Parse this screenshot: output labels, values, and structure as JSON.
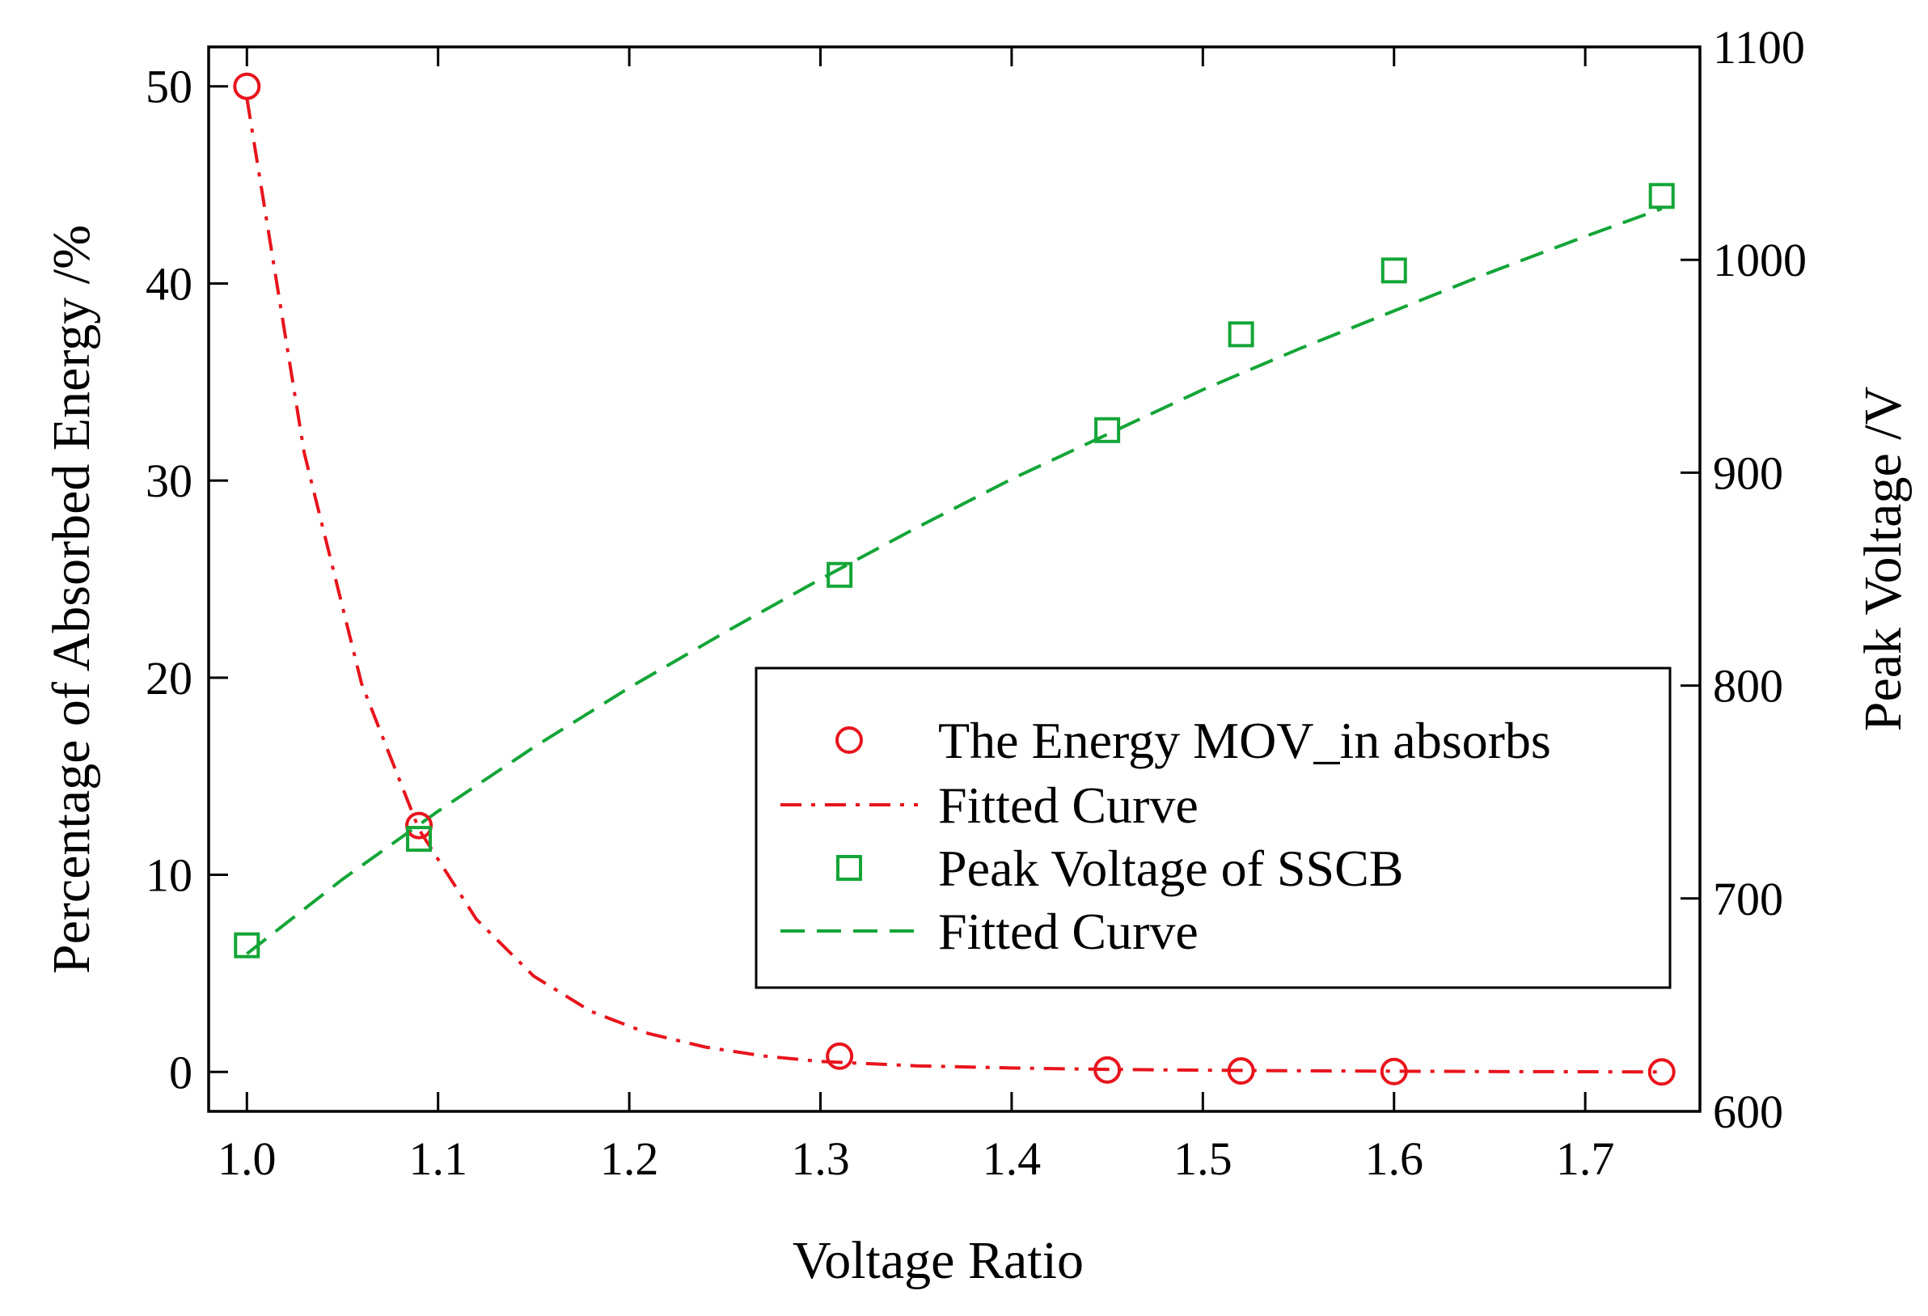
{
  "chart_data": {
    "type": "line",
    "title": "",
    "xlabel": "Voltage Ratio",
    "ylabel": "Percentage of Absorbed Energy /%",
    "y2label": "Peak Voltage /V",
    "xlim": [
      0.98,
      1.76
    ],
    "ylim": [
      -2,
      52
    ],
    "y2lim": [
      600,
      1100
    ],
    "xticks": [
      "1.0",
      "1.1",
      "1.2",
      "1.3",
      "1.4",
      "1.5",
      "1.6",
      "1.7"
    ],
    "yticks": [
      "0",
      "10",
      "20",
      "30",
      "40",
      "50"
    ],
    "y2ticks": [
      "600",
      "700",
      "800",
      "900",
      "1000",
      "1100"
    ],
    "grid": false,
    "legend_position": "center-right",
    "colors": {
      "energy": "#e8141c",
      "voltage": "#13a537"
    },
    "series": [
      {
        "name": "The Energy MOV_in absorbs",
        "axis": "left",
        "style": "marker-circle",
        "x": [
          1.0,
          1.09,
          1.31,
          1.45,
          1.52,
          1.6,
          1.74
        ],
        "y": [
          50.0,
          12.5,
          0.8,
          0.1,
          0.05,
          0.02,
          0.0
        ]
      },
      {
        "name": "Fitted Curve",
        "axis": "left",
        "style": "dash-dot",
        "model": "exponential decay",
        "x": [
          1.0,
          1.03,
          1.06,
          1.09,
          1.12,
          1.15,
          1.18,
          1.21,
          1.24,
          1.27,
          1.3,
          1.35,
          1.4,
          1.45,
          1.5,
          1.55,
          1.6,
          1.65,
          1.7,
          1.74
        ],
        "y": [
          49.4,
          31.4,
          19.7,
          12.3,
          7.75,
          4.86,
          3.07,
          1.95,
          1.26,
          0.81,
          0.53,
          0.31,
          0.2,
          0.13,
          0.09,
          0.06,
          0.04,
          0.02,
          0.01,
          0.0
        ]
      },
      {
        "name": "Peak Voltage of SSCB",
        "axis": "right",
        "style": "marker-square",
        "x": [
          1.0,
          1.09,
          1.31,
          1.45,
          1.52,
          1.6,
          1.74
        ],
        "y": [
          678,
          728,
          852,
          920,
          965,
          995,
          1030
        ]
      },
      {
        "name": "Fitted Curve",
        "axis": "right",
        "style": "dashed",
        "x": [
          1.0,
          1.05,
          1.1,
          1.15,
          1.2,
          1.25,
          1.3,
          1.35,
          1.4,
          1.45,
          1.5,
          1.55,
          1.6,
          1.65,
          1.7,
          1.74
        ],
        "y": [
          674,
          709,
          741,
          771,
          799,
          825,
          850,
          874,
          897,
          918,
          939,
          958,
          976,
          994,
          1011,
          1024
        ]
      }
    ],
    "legend": [
      {
        "label": "The Energy MOV_in absorbs",
        "style": "marker-circle",
        "color_key": "energy"
      },
      {
        "label": "Fitted Curve",
        "style": "dash-dot",
        "color_key": "energy"
      },
      {
        "label": "Peak Voltage of SSCB",
        "style": "marker-square",
        "color_key": "voltage"
      },
      {
        "label": "Fitted Curve",
        "style": "dashed",
        "color_key": "voltage"
      }
    ]
  }
}
